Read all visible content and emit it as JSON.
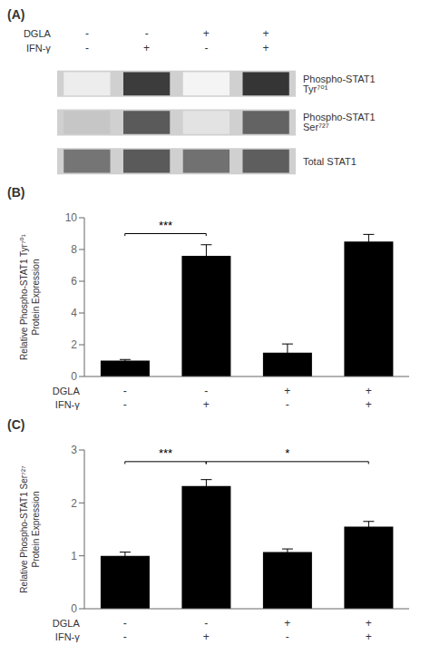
{
  "chart_data": [
    {
      "type": "heatmap",
      "title": "(A)",
      "rows": [
        "Phospho-STAT1 Tyr⁷⁰¹",
        "Phospho-STAT1 Ser⁷²⁷",
        "Total STAT1"
      ],
      "x_label_rows": [
        {
          "name": "DGLA",
          "labels": [
            "-",
            "-",
            "+",
            "+"
          ]
        },
        {
          "name": "IFN-γ",
          "labels": [
            "-",
            "+",
            "-",
            "+"
          ]
        }
      ],
      "cells": [
        [
          0.08,
          0.85,
          0.05,
          0.88
        ],
        [
          0.25,
          0.72,
          0.12,
          0.68
        ],
        [
          0.6,
          0.72,
          0.62,
          0.7
        ]
      ],
      "color": "#d0d0d0"
    },
    {
      "type": "bar",
      "title": "(B)",
      "ylabel": "Relative Phospho-STAT1 Tyr⁷⁰¹\nProtein Expression",
      "x_label_rows": [
        {
          "name": "DGLA",
          "labels": [
            "-",
            "-",
            "+",
            "+"
          ]
        },
        {
          "name": "IFN-γ",
          "labels": [
            "-",
            "+",
            "-",
            "+"
          ]
        }
      ],
      "values": [
        1.0,
        7.6,
        1.5,
        8.5
      ],
      "errors": [
        0.07,
        0.7,
        0.55,
        0.45
      ],
      "color": "#000000",
      "ylim": [
        0,
        10
      ],
      "yticks": [
        0,
        2,
        4,
        6,
        8,
        10
      ],
      "grid": false,
      "annotations": [
        {
          "x1": 0,
          "x2": 1,
          "y": 9.0,
          "label": "***"
        }
      ]
    },
    {
      "type": "bar",
      "title": "(C)",
      "ylabel": "Relative Phospho-STAT1 Ser⁷²⁷\nProtein Expression",
      "x_label_rows": [
        {
          "name": "DGLA",
          "labels": [
            "-",
            "-",
            "+",
            "+"
          ]
        },
        {
          "name": "IFN-γ",
          "labels": [
            "-",
            "+",
            "-",
            "+"
          ]
        }
      ],
      "values": [
        1.0,
        2.32,
        1.07,
        1.55
      ],
      "errors": [
        0.07,
        0.12,
        0.06,
        0.1
      ],
      "color": "#000000",
      "ylim": [
        0,
        3
      ],
      "yticks": [
        0,
        1,
        2,
        3
      ],
      "grid": false,
      "annotations": [
        {
          "x1": 0,
          "x2": 1,
          "y": 2.78,
          "label": "***"
        },
        {
          "x1": 1,
          "x2": 3,
          "y": 2.78,
          "label": "*"
        }
      ]
    }
  ]
}
